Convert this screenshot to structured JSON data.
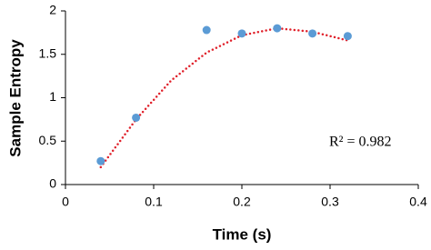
{
  "chart_data": {
    "type": "scatter",
    "x_label": "Time (s)",
    "y_label": "Sample Entropy",
    "x": [
      0.04,
      0.08,
      0.16,
      0.2,
      0.24,
      0.28,
      0.32
    ],
    "series": [
      {
        "color": "#5b9bd5",
        "values": [
          0.27,
          0.77,
          1.78,
          1.74,
          1.8,
          1.74,
          1.71
        ]
      }
    ],
    "trendline": {
      "color": "#e0202a",
      "x": [
        0.04,
        0.08,
        0.12,
        0.16,
        0.2,
        0.24,
        0.28,
        0.32
      ],
      "values": [
        0.2,
        0.75,
        1.2,
        1.52,
        1.72,
        1.8,
        1.76,
        1.66
      ]
    },
    "annotation": "R² = 0.982",
    "xlim": [
      0,
      0.4
    ],
    "xticks": [
      0,
      0.1,
      0.2,
      0.3,
      0.4
    ],
    "ylim": [
      0,
      2
    ],
    "yticks": [
      0,
      0.5,
      1,
      1.5,
      2
    ],
    "grid": false
  }
}
